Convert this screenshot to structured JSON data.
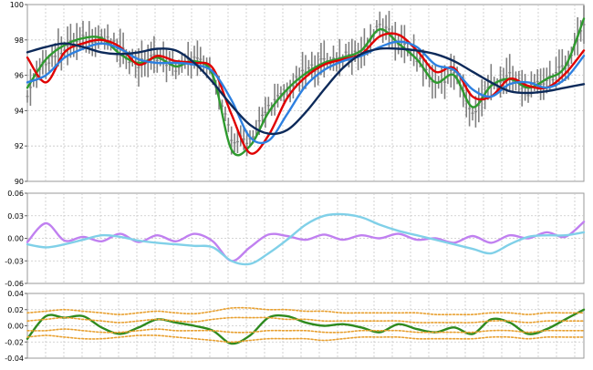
{
  "chart_data": [
    {
      "type": "line",
      "panel": "price",
      "ylim": [
        90,
        100
      ],
      "yticks": [
        "90",
        "92",
        "94",
        "96",
        "98",
        "100"
      ],
      "grid": true,
      "x": [
        0,
        10,
        20,
        30,
        40,
        50,
        60,
        70,
        80,
        90,
        100,
        110,
        120,
        130,
        140,
        150,
        160,
        170,
        180,
        190,
        200,
        210,
        220,
        230,
        240,
        250,
        260,
        270,
        280,
        290,
        300
      ],
      "series": [
        {
          "key": "price",
          "color": "#808080",
          "style": "ohlc",
          "values": [
            95.0,
            96.8,
            97.6,
            98.0,
            98.2,
            97.4,
            96.6,
            97.1,
            96.4,
            96.9,
            96.2,
            92.3,
            92.4,
            94.2,
            95.1,
            96.2,
            96.8,
            97.0,
            97.3,
            98.8,
            97.9,
            97.0,
            95.5,
            96.2,
            93.8,
            95.5,
            95.9,
            95.1,
            95.8,
            96.4,
            99.0
          ]
        },
        {
          "key": "green",
          "color": "#2e9a2e",
          "values": [
            95.3,
            96.9,
            97.7,
            98.1,
            98.1,
            97.2,
            96.7,
            97.0,
            96.5,
            96.8,
            96.0,
            91.8,
            92.0,
            93.9,
            95.2,
            96.1,
            96.7,
            97.0,
            97.4,
            98.6,
            97.8,
            96.9,
            95.6,
            96.0,
            94.2,
            95.4,
            95.8,
            95.3,
            95.8,
            96.5,
            99.2
          ]
        },
        {
          "key": "red",
          "color": "#e00000",
          "values": [
            97.0,
            95.6,
            97.3,
            97.8,
            98.0,
            97.6,
            96.6,
            97.1,
            96.8,
            96.7,
            96.4,
            93.8,
            91.6,
            92.6,
            94.7,
            95.9,
            96.6,
            96.9,
            97.2,
            98.2,
            98.3,
            97.4,
            96.2,
            96.4,
            94.8,
            94.8,
            95.8,
            95.4,
            95.3,
            96.1,
            97.4
          ]
        },
        {
          "key": "blue",
          "color": "#2d80e0",
          "values": [
            95.6,
            96.0,
            97.0,
            97.5,
            97.8,
            97.5,
            96.9,
            96.7,
            96.7,
            96.6,
            96.2,
            94.6,
            92.5,
            92.3,
            93.8,
            95.4,
            96.3,
            96.8,
            97.1,
            97.6,
            97.9,
            97.6,
            96.6,
            96.3,
            95.2,
            94.8,
            95.5,
            95.6,
            95.3,
            95.8,
            97.1
          ]
        },
        {
          "key": "navy",
          "color": "#0d2a5a",
          "values": [
            97.3,
            97.6,
            97.8,
            97.6,
            97.3,
            97.2,
            97.3,
            97.5,
            97.4,
            96.7,
            95.6,
            94.3,
            93.2,
            92.7,
            92.9,
            93.9,
            95.2,
            96.4,
            97.2,
            97.5,
            97.5,
            97.4,
            97.2,
            96.8,
            96.2,
            95.6,
            95.1,
            95.0,
            95.1,
            95.3,
            95.5
          ]
        }
      ]
    },
    {
      "type": "line",
      "panel": "oscillator-1",
      "ylim": [
        -0.06,
        0.06
      ],
      "yticks": [
        "-0.06",
        "-0.03",
        "0.00",
        "0.03",
        "0.06"
      ],
      "grid": true,
      "x": [
        0,
        10,
        20,
        30,
        40,
        50,
        60,
        70,
        80,
        90,
        100,
        110,
        120,
        130,
        140,
        150,
        160,
        170,
        180,
        190,
        200,
        210,
        220,
        230,
        240,
        250,
        260,
        270,
        280,
        290,
        300
      ],
      "series": [
        {
          "key": "violet",
          "color": "#c080f0",
          "values": [
            -0.005,
            0.02,
            -0.003,
            0.002,
            -0.004,
            0.006,
            -0.005,
            0.004,
            -0.004,
            0.006,
            -0.004,
            -0.03,
            -0.012,
            0.005,
            0.003,
            -0.002,
            0.005,
            -0.002,
            0.004,
            0.0,
            0.006,
            -0.002,
            0.0,
            -0.006,
            0.003,
            -0.006,
            0.004,
            0.0,
            0.008,
            0.002,
            0.022
          ]
        },
        {
          "key": "cyan",
          "color": "#80d0e8",
          "values": [
            -0.008,
            -0.012,
            -0.008,
            -0.002,
            0.004,
            0.002,
            -0.003,
            -0.006,
            -0.008,
            -0.01,
            -0.012,
            -0.03,
            -0.034,
            -0.02,
            -0.002,
            0.018,
            0.03,
            0.032,
            0.028,
            0.018,
            0.01,
            0.004,
            -0.002,
            -0.008,
            -0.014,
            -0.02,
            -0.008,
            0.002,
            0.004,
            0.004,
            0.008
          ]
        }
      ]
    },
    {
      "type": "line",
      "panel": "oscillator-2",
      "ylim": [
        -0.04,
        0.04
      ],
      "yticks": [
        "-0.04",
        "-0.02",
        "0.00",
        "0.02",
        "0.04"
      ],
      "grid": true,
      "x": [
        0,
        10,
        20,
        30,
        40,
        50,
        60,
        70,
        80,
        90,
        100,
        110,
        120,
        130,
        140,
        150,
        160,
        170,
        180,
        190,
        200,
        210,
        220,
        230,
        240,
        250,
        260,
        270,
        280,
        290,
        300
      ],
      "series": [
        {
          "key": "green",
          "color": "#2e8a1e",
          "values": [
            -0.016,
            0.012,
            0.01,
            0.012,
            -0.002,
            -0.01,
            -0.002,
            0.008,
            0.004,
            0.0,
            -0.006,
            -0.022,
            -0.012,
            0.01,
            0.012,
            0.004,
            0.0,
            0.002,
            -0.002,
            -0.008,
            0.002,
            -0.004,
            -0.008,
            -0.002,
            -0.01,
            0.008,
            0.004,
            -0.01,
            -0.004,
            0.008,
            0.02
          ]
        },
        {
          "key": "band-upper",
          "color": "#e8a030",
          "dashed": true,
          "values": [
            0.016,
            0.018,
            0.02,
            0.018,
            0.016,
            0.014,
            0.016,
            0.018,
            0.016,
            0.015,
            0.018,
            0.022,
            0.022,
            0.02,
            0.02,
            0.018,
            0.018,
            0.016,
            0.016,
            0.016,
            0.016,
            0.016,
            0.014,
            0.014,
            0.014,
            0.016,
            0.016,
            0.014,
            0.016,
            0.016,
            0.016
          ]
        },
        {
          "key": "band-mid-upper",
          "color": "#e8a030",
          "dashed": true,
          "values": [
            0.006,
            0.008,
            0.01,
            0.008,
            0.006,
            0.004,
            0.006,
            0.008,
            0.006,
            0.005,
            0.008,
            0.01,
            0.01,
            0.01,
            0.008,
            0.008,
            0.006,
            0.006,
            0.006,
            0.006,
            0.006,
            0.004,
            0.004,
            0.004,
            0.004,
            0.006,
            0.006,
            0.004,
            0.006,
            0.006,
            0.006
          ]
        },
        {
          "key": "band-mid-lower",
          "color": "#e8a030",
          "dashed": true,
          "values": [
            -0.006,
            -0.006,
            -0.004,
            -0.006,
            -0.008,
            -0.008,
            -0.006,
            -0.004,
            -0.006,
            -0.006,
            -0.006,
            -0.008,
            -0.008,
            -0.006,
            -0.006,
            -0.006,
            -0.008,
            -0.008,
            -0.006,
            -0.006,
            -0.006,
            -0.008,
            -0.008,
            -0.008,
            -0.008,
            -0.006,
            -0.006,
            -0.008,
            -0.006,
            -0.006,
            -0.006
          ]
        },
        {
          "key": "band-lower",
          "color": "#e8a030",
          "dashed": true,
          "values": [
            -0.014,
            -0.012,
            -0.014,
            -0.016,
            -0.016,
            -0.014,
            -0.012,
            -0.012,
            -0.014,
            -0.016,
            -0.018,
            -0.02,
            -0.018,
            -0.016,
            -0.016,
            -0.016,
            -0.018,
            -0.016,
            -0.014,
            -0.014,
            -0.014,
            -0.016,
            -0.016,
            -0.016,
            -0.016,
            -0.014,
            -0.014,
            -0.016,
            -0.014,
            -0.014,
            -0.014
          ]
        }
      ]
    }
  ]
}
